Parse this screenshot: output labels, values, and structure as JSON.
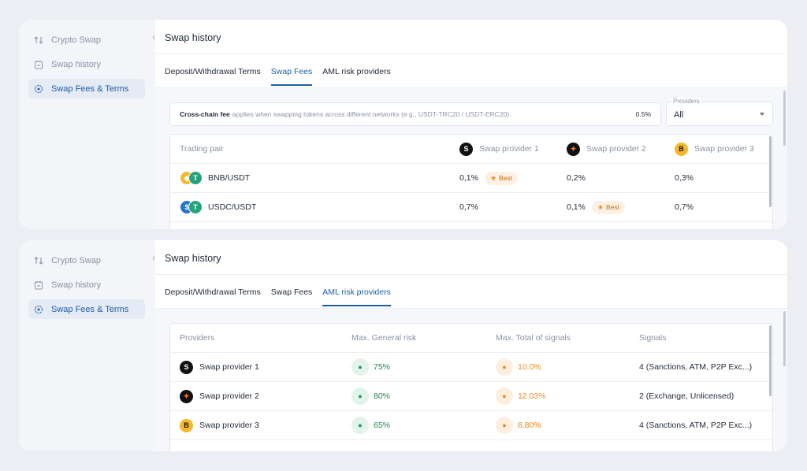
{
  "sidebar": {
    "items": [
      {
        "label": "Crypto Swap",
        "icon": "swap-arrows-icon"
      },
      {
        "label": "Swap history",
        "icon": "history-icon"
      },
      {
        "label": "Swap Fees & Terms",
        "icon": "fees-icon"
      }
    ],
    "active": 2
  },
  "page_title": "Swap history",
  "tabs": [
    "Deposit/Withdrawal Terms",
    "Swap Fees",
    "AML risk providers"
  ],
  "fees_panel": {
    "active_tab": "Swap Fees",
    "fee_note": {
      "strong": "Cross-chain fee",
      "text": "applies when swapping tokens across different networks (e.g., USDT-TRC20 / USDT-ERC20).",
      "value": "0.5%"
    },
    "providers_select": {
      "label": "Providers",
      "value": "All"
    },
    "headers": [
      "Trading pair",
      "Swap provider 1",
      "Swap provider 2",
      "Swap provider 3"
    ],
    "rows": [
      {
        "pair": "BNB/USDT",
        "p1": "0,1%",
        "p2": "0,2%",
        "p3": "0,3%",
        "best": "p1",
        "coin_a": "#f3ba2f",
        "coin_b": "#26a17b"
      },
      {
        "pair": "USDC/USDT",
        "p1": "0,7%",
        "p2": "0,1%",
        "p3": "0,7%",
        "best": "p2",
        "coin_a": "#2775ca",
        "coin_b": "#26a17b"
      }
    ],
    "best_label": "Best"
  },
  "aml_panel": {
    "active_tab": "AML risk providers",
    "headers": [
      "Providers",
      "Max. General risk",
      "Max. Total of signals",
      "Signals"
    ],
    "rows": [
      {
        "provider": "Swap provider 1",
        "general_risk": "75%",
        "total_signals": "10.0%",
        "signals": "4 (Sanctions, ATM, P2P Exc...)"
      },
      {
        "provider": "Swap provider 2",
        "general_risk": "80%",
        "total_signals": "12.03%",
        "signals": "2 (Exchange, Unlicensed)"
      },
      {
        "provider": "Swap provider 3",
        "general_risk": "65%",
        "total_signals": "8.80%",
        "signals": "4 (Sanctions, ATM, P2P Exc...)"
      }
    ]
  },
  "colors": {
    "accent": "#1f5fa6",
    "best": "#f08a24",
    "risk_green": "#1a9a55",
    "risk_orange": "#e88a1f"
  }
}
